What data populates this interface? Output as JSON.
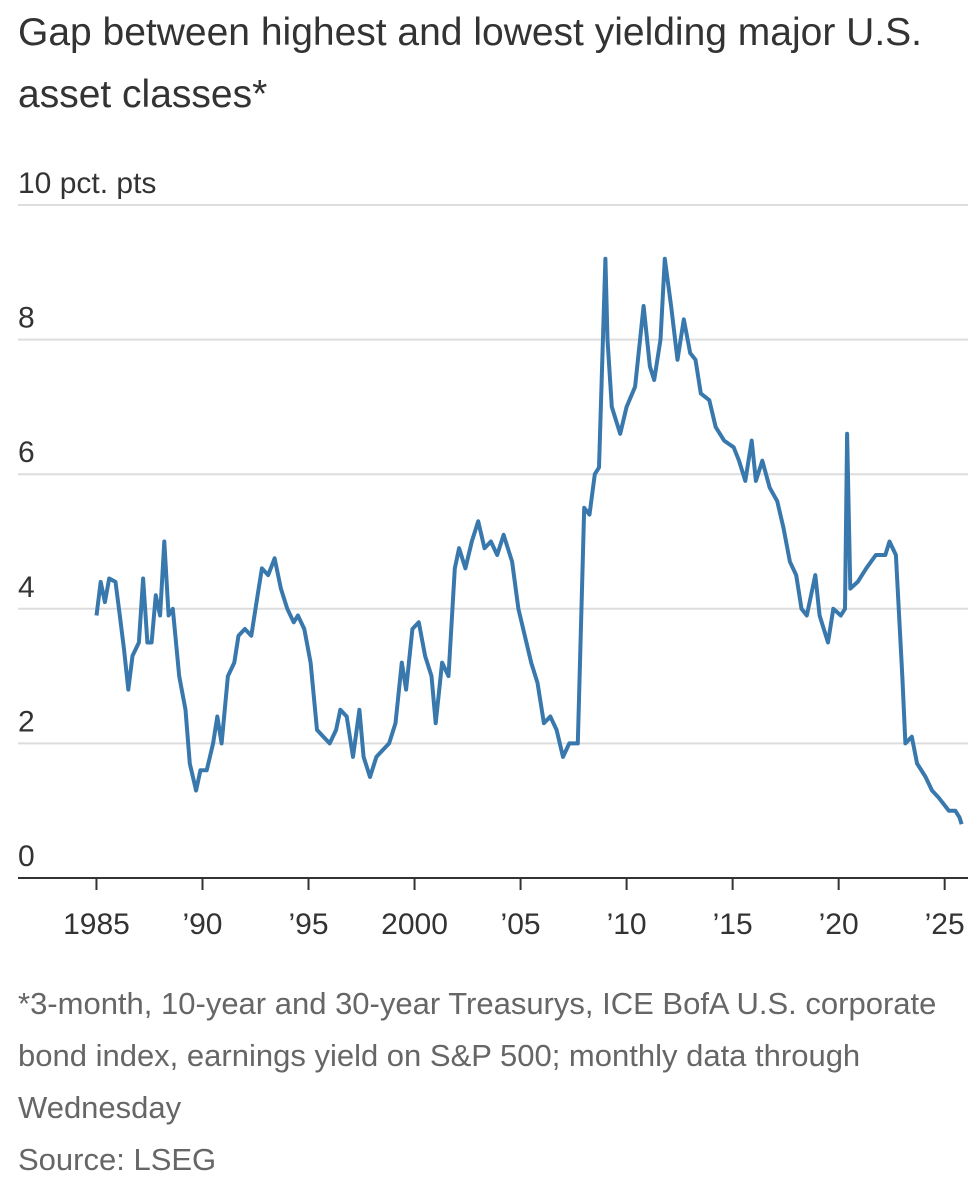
{
  "chart_data": {
    "type": "line",
    "title": "Gap between highest and lowest yielding major U.S. asset classes*",
    "note": "*3-month, 10-year and 30-year Treasurys, ICE BofA U.S. corporate bond index, earnings yield on S&P 500; monthly data through Wednesday",
    "source": "Source: LSEG",
    "color": "#3878ad",
    "grid": true,
    "xlim": [
      1981.3,
      2026.1
    ],
    "ylim": [
      0,
      10
    ],
    "xticks": [
      1985,
      {
        "value": 1990,
        "label": "’90"
      },
      {
        "value": 1995,
        "label": "’95"
      },
      2000,
      {
        "value": 2005,
        "label": "’05"
      },
      {
        "value": 2010,
        "label": "’10"
      },
      {
        "value": 2015,
        "label": "’15"
      },
      {
        "value": 2020,
        "label": "’20"
      },
      {
        "value": 2025,
        "label": "’25"
      }
    ],
    "yticks": [
      0,
      2,
      4,
      6,
      8,
      {
        "value": 10,
        "label": "10 pct. pts"
      }
    ],
    "x": [
      1985.0,
      1985.2,
      1985.4,
      1985.6,
      1985.9,
      1986.1,
      1986.3,
      1986.5,
      1986.7,
      1987.0,
      1987.2,
      1987.4,
      1987.6,
      1987.8,
      1988.0,
      1988.2,
      1988.4,
      1988.6,
      1988.9,
      1989.2,
      1989.4,
      1989.7,
      1989.9,
      1990.2,
      1990.5,
      1990.7,
      1990.9,
      1991.2,
      1991.5,
      1991.7,
      1992.0,
      1992.3,
      1992.6,
      1992.8,
      1993.1,
      1993.4,
      1993.7,
      1994.0,
      1994.3,
      1994.5,
      1994.8,
      1995.1,
      1995.4,
      1995.7,
      1996.0,
      1996.3,
      1996.5,
      1996.8,
      1997.1,
      1997.4,
      1997.6,
      1997.9,
      1998.2,
      1998.5,
      1998.8,
      1999.1,
      1999.4,
      1999.6,
      1999.9,
      2000.2,
      2000.5,
      2000.8,
      2001.0,
      2001.3,
      2001.6,
      2001.9,
      2002.1,
      2002.4,
      2002.7,
      2003.0,
      2003.3,
      2003.6,
      2003.9,
      2004.2,
      2004.6,
      2004.9,
      2005.2,
      2005.5,
      2005.8,
      2006.1,
      2006.4,
      2006.7,
      2007.0,
      2007.3,
      2007.7,
      2008.0,
      2008.25,
      2008.5,
      2008.7,
      2009.0,
      2009.1,
      2009.3,
      2009.7,
      2010.0,
      2010.4,
      2010.8,
      2011.1,
      2011.3,
      2011.6,
      2011.8,
      2012.1,
      2012.4,
      2012.7,
      2013.0,
      2013.25,
      2013.5,
      2013.9,
      2014.2,
      2014.6,
      2015.05,
      2015.3,
      2015.6,
      2015.9,
      2016.1,
      2016.4,
      2016.75,
      2017.1,
      2017.4,
      2017.7,
      2018.0,
      2018.25,
      2018.5,
      2018.9,
      2019.1,
      2019.5,
      2019.75,
      2020.1,
      2020.3,
      2020.4,
      2020.55,
      2020.9,
      2021.3,
      2021.75,
      2022.2,
      2022.4,
      2022.7,
      2023.0,
      2023.15,
      2023.45,
      2023.7,
      2024.1,
      2024.4,
      2024.7,
      2024.95,
      2025.2,
      2025.5,
      2025.7,
      2025.8
    ],
    "values": [
      3.9,
      4.4,
      4.1,
      4.45,
      4.4,
      3.9,
      3.4,
      2.8,
      3.3,
      3.5,
      4.45,
      3.5,
      3.5,
      4.2,
      3.9,
      5.0,
      3.9,
      4.0,
      3.0,
      2.5,
      1.7,
      1.3,
      1.6,
      1.6,
      2.0,
      2.4,
      2.0,
      3.0,
      3.2,
      3.6,
      3.7,
      3.6,
      4.2,
      4.6,
      4.5,
      4.75,
      4.3,
      4.0,
      3.8,
      3.9,
      3.7,
      3.2,
      2.2,
      2.1,
      2.0,
      2.2,
      2.5,
      2.4,
      1.8,
      2.5,
      1.8,
      1.5,
      1.8,
      1.9,
      2.0,
      2.3,
      3.2,
      2.8,
      3.7,
      3.8,
      3.3,
      3.0,
      2.3,
      3.2,
      3.0,
      4.6,
      4.9,
      4.6,
      5.0,
      5.3,
      4.9,
      5.0,
      4.8,
      5.1,
      4.7,
      4.0,
      3.6,
      3.2,
      2.9,
      2.3,
      2.4,
      2.2,
      1.8,
      2.0,
      2.0,
      5.5,
      5.4,
      6.0,
      6.1,
      9.2,
      8.0,
      7.0,
      6.6,
      7.0,
      7.3,
      8.5,
      7.6,
      7.4,
      8.0,
      9.2,
      8.5,
      7.7,
      8.3,
      7.8,
      7.7,
      7.2,
      7.1,
      6.7,
      6.5,
      6.4,
      6.2,
      5.9,
      6.5,
      5.9,
      6.2,
      5.8,
      5.6,
      5.2,
      4.7,
      4.5,
      4.0,
      3.9,
      4.5,
      3.9,
      3.5,
      4.0,
      3.9,
      4.0,
      6.6,
      4.3,
      4.4,
      4.6,
      4.8,
      4.8,
      5.0,
      4.8,
      3.0,
      2.0,
      2.1,
      1.7,
      1.5,
      1.3,
      1.2,
      1.1,
      1.0,
      1.0,
      0.9,
      0.8
    ]
  }
}
